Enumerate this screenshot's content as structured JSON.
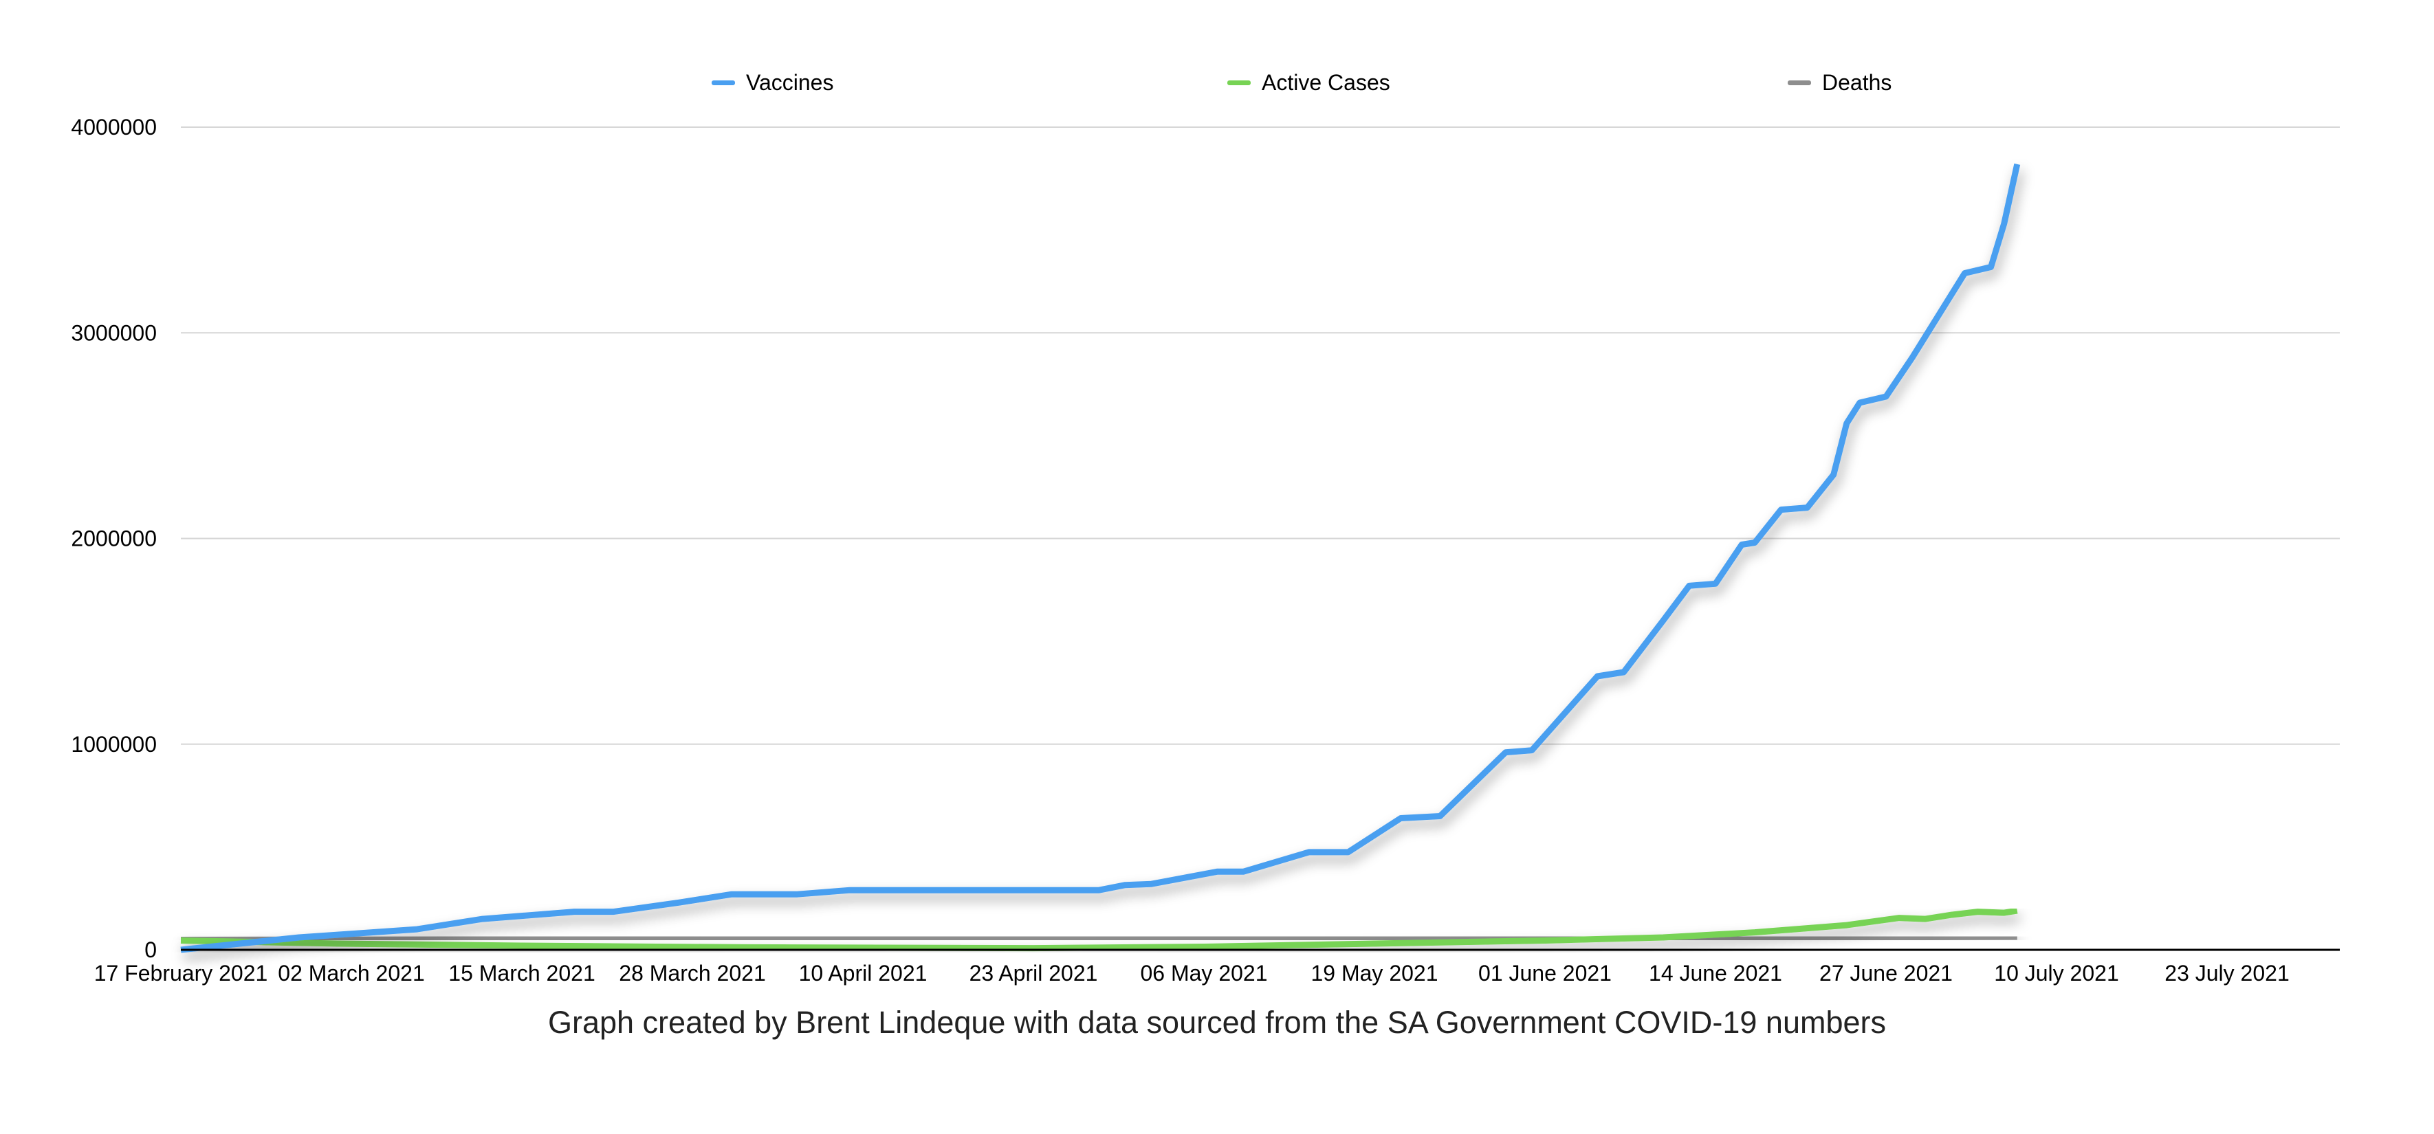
{
  "chart_data": {
    "type": "line",
    "title": "",
    "caption": "Graph created by Brent Lindeque with data sourced from the SA Government COVID-19 numbers",
    "xlabel": "",
    "ylabel": "",
    "xlim": [
      "2021-02-17",
      "2021-07-31"
    ],
    "ylim": [
      0,
      4000000
    ],
    "grid": true,
    "legend_position": "top",
    "x_ticks": [
      "2021-02-17",
      "2021-03-02",
      "2021-03-15",
      "2021-03-28",
      "2021-04-10",
      "2021-04-23",
      "2021-05-06",
      "2021-05-19",
      "2021-06-01",
      "2021-06-14",
      "2021-06-27",
      "2021-07-10",
      "2021-07-23"
    ],
    "x_tick_labels": [
      "17 February 2021",
      "02 March 2021",
      "15 March 2021",
      "28 March 2021",
      "10 April 2021",
      "23 April 2021",
      "06 May 2021",
      "19 May 2021",
      "01 June 2021",
      "14 June 2021",
      "27 June 2021",
      "10 July 2021",
      "23 July 2021"
    ],
    "y_ticks": [
      0,
      1000000,
      2000000,
      3000000,
      4000000
    ],
    "y_tick_labels": [
      "0",
      "1000000",
      "2000000",
      "3000000",
      "4000000"
    ],
    "series": [
      {
        "name": "Vaccines",
        "color": "#4a9ff0",
        "points": [
          [
            "2021-02-17",
            0
          ],
          [
            "2021-02-26",
            60000
          ],
          [
            "2021-03-07",
            100000
          ],
          [
            "2021-03-12",
            150000
          ],
          [
            "2021-03-19",
            185000
          ],
          [
            "2021-03-22",
            185000
          ],
          [
            "2021-03-27",
            230000
          ],
          [
            "2021-03-31",
            270000
          ],
          [
            "2021-04-05",
            270000
          ],
          [
            "2021-04-09",
            290000
          ],
          [
            "2021-04-28",
            290000
          ],
          [
            "2021-04-30",
            315000
          ],
          [
            "2021-05-02",
            320000
          ],
          [
            "2021-05-07",
            380000
          ],
          [
            "2021-05-09",
            380000
          ],
          [
            "2021-05-14",
            475000
          ],
          [
            "2021-05-17",
            475000
          ],
          [
            "2021-05-21",
            640000
          ],
          [
            "2021-05-24",
            650000
          ],
          [
            "2021-05-29",
            960000
          ],
          [
            "2021-05-31",
            970000
          ],
          [
            "2021-06-05",
            1330000
          ],
          [
            "2021-06-07",
            1350000
          ],
          [
            "2021-06-10",
            1600000
          ],
          [
            "2021-06-12",
            1770000
          ],
          [
            "2021-06-14",
            1780000
          ],
          [
            "2021-06-16",
            1970000
          ],
          [
            "2021-06-17",
            1980000
          ],
          [
            "2021-06-19",
            2140000
          ],
          [
            "2021-06-21",
            2150000
          ],
          [
            "2021-06-23",
            2310000
          ],
          [
            "2021-06-24",
            2560000
          ],
          [
            "2021-06-25",
            2660000
          ],
          [
            "2021-06-27",
            2690000
          ],
          [
            "2021-06-29",
            2880000
          ],
          [
            "2021-07-03",
            3290000
          ],
          [
            "2021-07-05",
            3320000
          ],
          [
            "2021-07-06",
            3530000
          ],
          [
            "2021-07-07",
            3820000
          ]
        ]
      },
      {
        "name": "Active Cases",
        "color": "#77d354",
        "points": [
          [
            "2021-02-17",
            45000
          ],
          [
            "2021-03-01",
            30000
          ],
          [
            "2021-03-15",
            20000
          ],
          [
            "2021-04-01",
            12000
          ],
          [
            "2021-04-23",
            8000
          ],
          [
            "2021-05-06",
            15000
          ],
          [
            "2021-05-19",
            30000
          ],
          [
            "2021-06-01",
            45000
          ],
          [
            "2021-06-10",
            60000
          ],
          [
            "2021-06-17",
            85000
          ],
          [
            "2021-06-24",
            120000
          ],
          [
            "2021-06-28",
            155000
          ],
          [
            "2021-06-30",
            150000
          ],
          [
            "2021-07-02",
            170000
          ],
          [
            "2021-07-04",
            185000
          ],
          [
            "2021-07-06",
            180000
          ],
          [
            "2021-07-07",
            190000
          ]
        ]
      },
      {
        "name": "Deaths",
        "color": "#8e8e8e",
        "points": [
          [
            "2021-02-17",
            48500
          ],
          [
            "2021-04-01",
            52000
          ],
          [
            "2021-05-19",
            55000
          ],
          [
            "2021-06-14",
            58000
          ],
          [
            "2021-07-07",
            63000
          ]
        ]
      }
    ]
  }
}
